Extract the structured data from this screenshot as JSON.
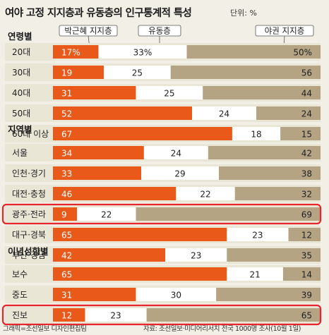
{
  "title": "여야 고정 지지층과 유동층의 인구통계적 특성",
  "unit_label": "단위: %",
  "footer": {
    "credit": "그래픽=조선일보 디자인편집팀",
    "source": "자료: 조선일보·미디어리서치 전국 1000명 조사(10월 1일)"
  },
  "colors": {
    "ruling": "#e8591a",
    "swing": "#ffffff",
    "opposition": "#b4a483",
    "row_bg": "#e9e6d6",
    "highlight": "#e8252d"
  },
  "chart_data": {
    "type": "bar",
    "stacked": true,
    "orientation": "horizontal",
    "value_unit": "%",
    "legend": [
      "박근혜 지지층",
      "유동층",
      "야권 지지층"
    ],
    "groups": [
      {
        "name": "연령별",
        "rows": [
          {
            "label": "20대",
            "values": [
              17,
              33,
              50
            ],
            "display": [
              "17%",
              "33%",
              "50%"
            ]
          },
          {
            "label": "30대",
            "values": [
              19,
              25,
              56
            ]
          },
          {
            "label": "40대",
            "values": [
              31,
              25,
              44
            ]
          },
          {
            "label": "50대",
            "values": [
              52,
              24,
              24
            ]
          },
          {
            "label": "60대 이상",
            "values": [
              67,
              18,
              15
            ]
          }
        ]
      },
      {
        "name": "지역별",
        "rows": [
          {
            "label": "서울",
            "values": [
              34,
              24,
              42
            ]
          },
          {
            "label": "인천·경기",
            "values": [
              33,
              29,
              38
            ]
          },
          {
            "label": "대전·충청",
            "values": [
              46,
              22,
              32
            ]
          },
          {
            "label": "광주·전라",
            "values": [
              9,
              22,
              69
            ],
            "highlight": true
          },
          {
            "label": "대구·경북",
            "values": [
              65,
              23,
              12
            ]
          },
          {
            "label": "부산·경남",
            "values": [
              42,
              23,
              35
            ]
          }
        ]
      },
      {
        "name": "이념성향별",
        "rows": [
          {
            "label": "보수",
            "values": [
              65,
              21,
              14
            ]
          },
          {
            "label": "중도",
            "values": [
              31,
              30,
              39
            ]
          },
          {
            "label": "진보",
            "values": [
              12,
              23,
              65
            ],
            "highlight": true
          }
        ]
      }
    ]
  }
}
